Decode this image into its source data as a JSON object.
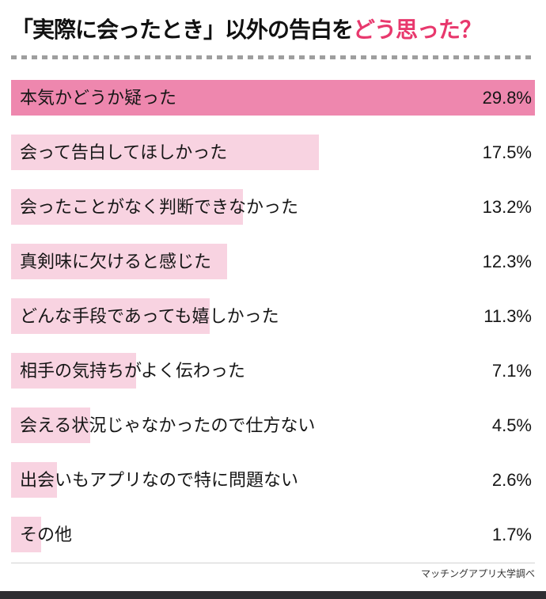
{
  "title": {
    "main": "「実際に会ったとき」以外の告白を",
    "accent": "どう思った？"
  },
  "source": "マッチングアプリ大学調べ",
  "colors": {
    "accent": "#e8386d",
    "bar_primary": "#ee87ae",
    "bar_secondary": "#f8d3e1",
    "divider": "#9e9e9e",
    "footer_bar": "#2e2e32",
    "text": "#111111"
  },
  "chart_data": {
    "type": "bar",
    "title": "「実際に会ったとき」以外の告白をどう思った？",
    "orientation": "horizontal",
    "categories": [
      "本気かどうか疑った",
      "会って告白してほしかった",
      "会ったことがなく判断できなかった",
      "真剣味に欠けると感じた",
      "どんな手段であっても嬉しかった",
      "相手の気持ちがよく伝わった",
      "会える状況じゃなかったので仕方ない",
      "出会いもアプリなので特に問題ない",
      "その他"
    ],
    "values": [
      29.8,
      17.5,
      13.2,
      12.3,
      11.3,
      7.1,
      4.5,
      2.6,
      1.7
    ],
    "unit": "%",
    "max_value": 29.8,
    "xlabel": "",
    "ylabel": "",
    "grid": false,
    "legend": false,
    "value_labels_position": "right-aligned",
    "highlight_first_bar": true
  }
}
